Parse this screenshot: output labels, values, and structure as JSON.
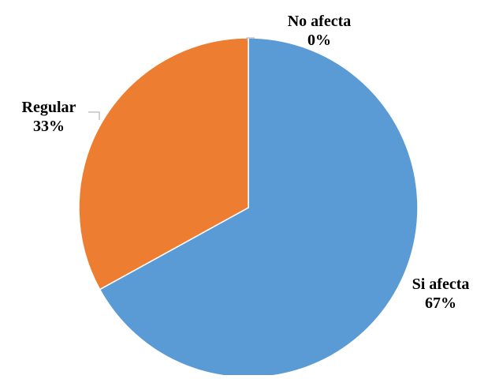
{
  "chart_data": {
    "type": "pie",
    "title": "",
    "legend": "none",
    "slices": [
      {
        "label": "Si afecta",
        "value": 67,
        "display": "67%",
        "color": "#5b9bd5"
      },
      {
        "label": "Regular",
        "value": 33,
        "display": "33%",
        "color": "#ed7d31"
      },
      {
        "label": "No afecta",
        "value": 0,
        "display": "0%",
        "color": "#a5a5a5"
      }
    ]
  }
}
